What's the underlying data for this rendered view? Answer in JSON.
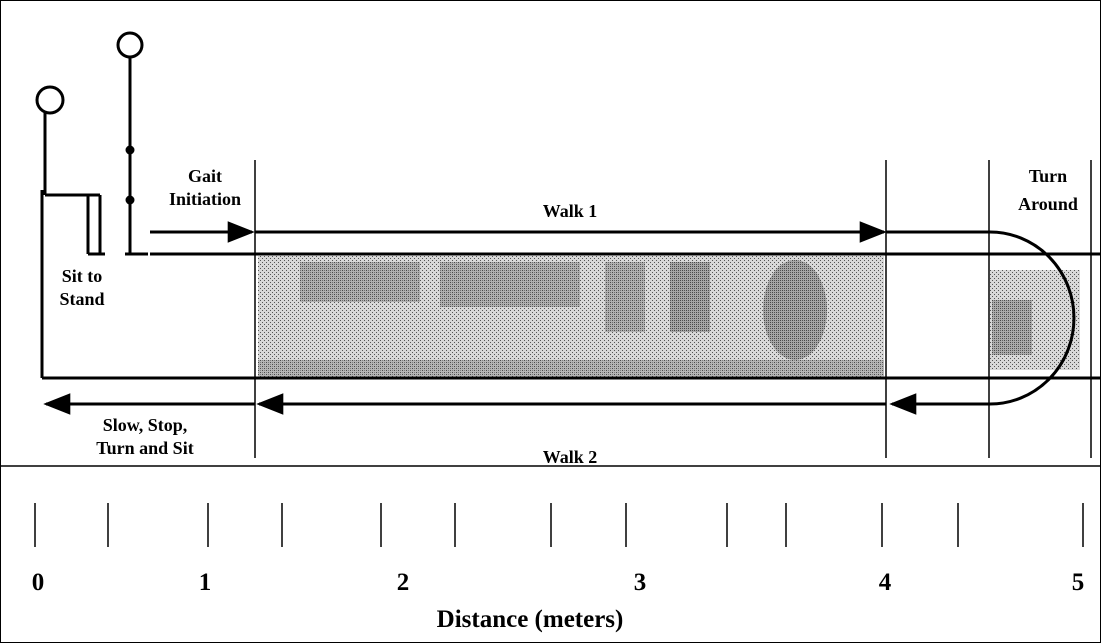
{
  "diagram": {
    "labels": {
      "gait_initiation": [
        "Gait",
        "Initiation"
      ],
      "walk_1": "Walk 1",
      "sit_to_stand": [
        "Sit to",
        "Stand"
      ],
      "turn_around": [
        "Turn",
        "Around"
      ],
      "slow_stop_turn_sit": [
        "Slow, Stop,",
        "Turn and Sit"
      ],
      "walk_2": "Walk 2"
    },
    "ruler": {
      "ticks": [
        "0",
        "1",
        "2",
        "3",
        "4",
        "5"
      ],
      "axis_label": "Distance (meters)"
    }
  }
}
